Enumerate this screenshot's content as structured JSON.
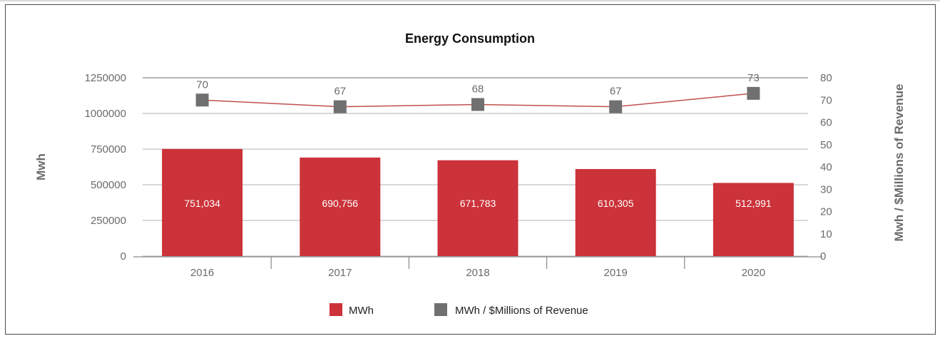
{
  "chart_data": {
    "type": "bar",
    "title": "Energy Consumption",
    "categories": [
      "2016",
      "2017",
      "2018",
      "2019",
      "2020"
    ],
    "series": [
      {
        "name": "MWh",
        "type": "bar",
        "axis": "left",
        "color": "#cc3239",
        "values": [
          751034,
          690756,
          671783,
          610305,
          512991
        ],
        "labels": [
          "751,034",
          "690,756",
          "671,783",
          "610,305",
          "512,991"
        ]
      },
      {
        "name": "MWh / $Millions of Revenue",
        "type": "line",
        "axis": "right",
        "color": "#707070",
        "line_color": "#c0504d",
        "values": [
          70,
          67,
          68,
          67,
          73
        ],
        "labels": [
          "70",
          "67",
          "68",
          "67",
          "73"
        ]
      }
    ],
    "ylabel": "Mwh",
    "y2label": "Mwh / $Millions of Revenue",
    "ylim": [
      0,
      1250000
    ],
    "y2lim": [
      0,
      80
    ],
    "yticks": [
      "0",
      "250000",
      "500000",
      "750000",
      "1000000",
      "1250000"
    ],
    "y2ticks": [
      "0",
      "10",
      "20",
      "30",
      "40",
      "50",
      "60",
      "70",
      "80"
    ],
    "grid": true,
    "legend": "bottom"
  }
}
